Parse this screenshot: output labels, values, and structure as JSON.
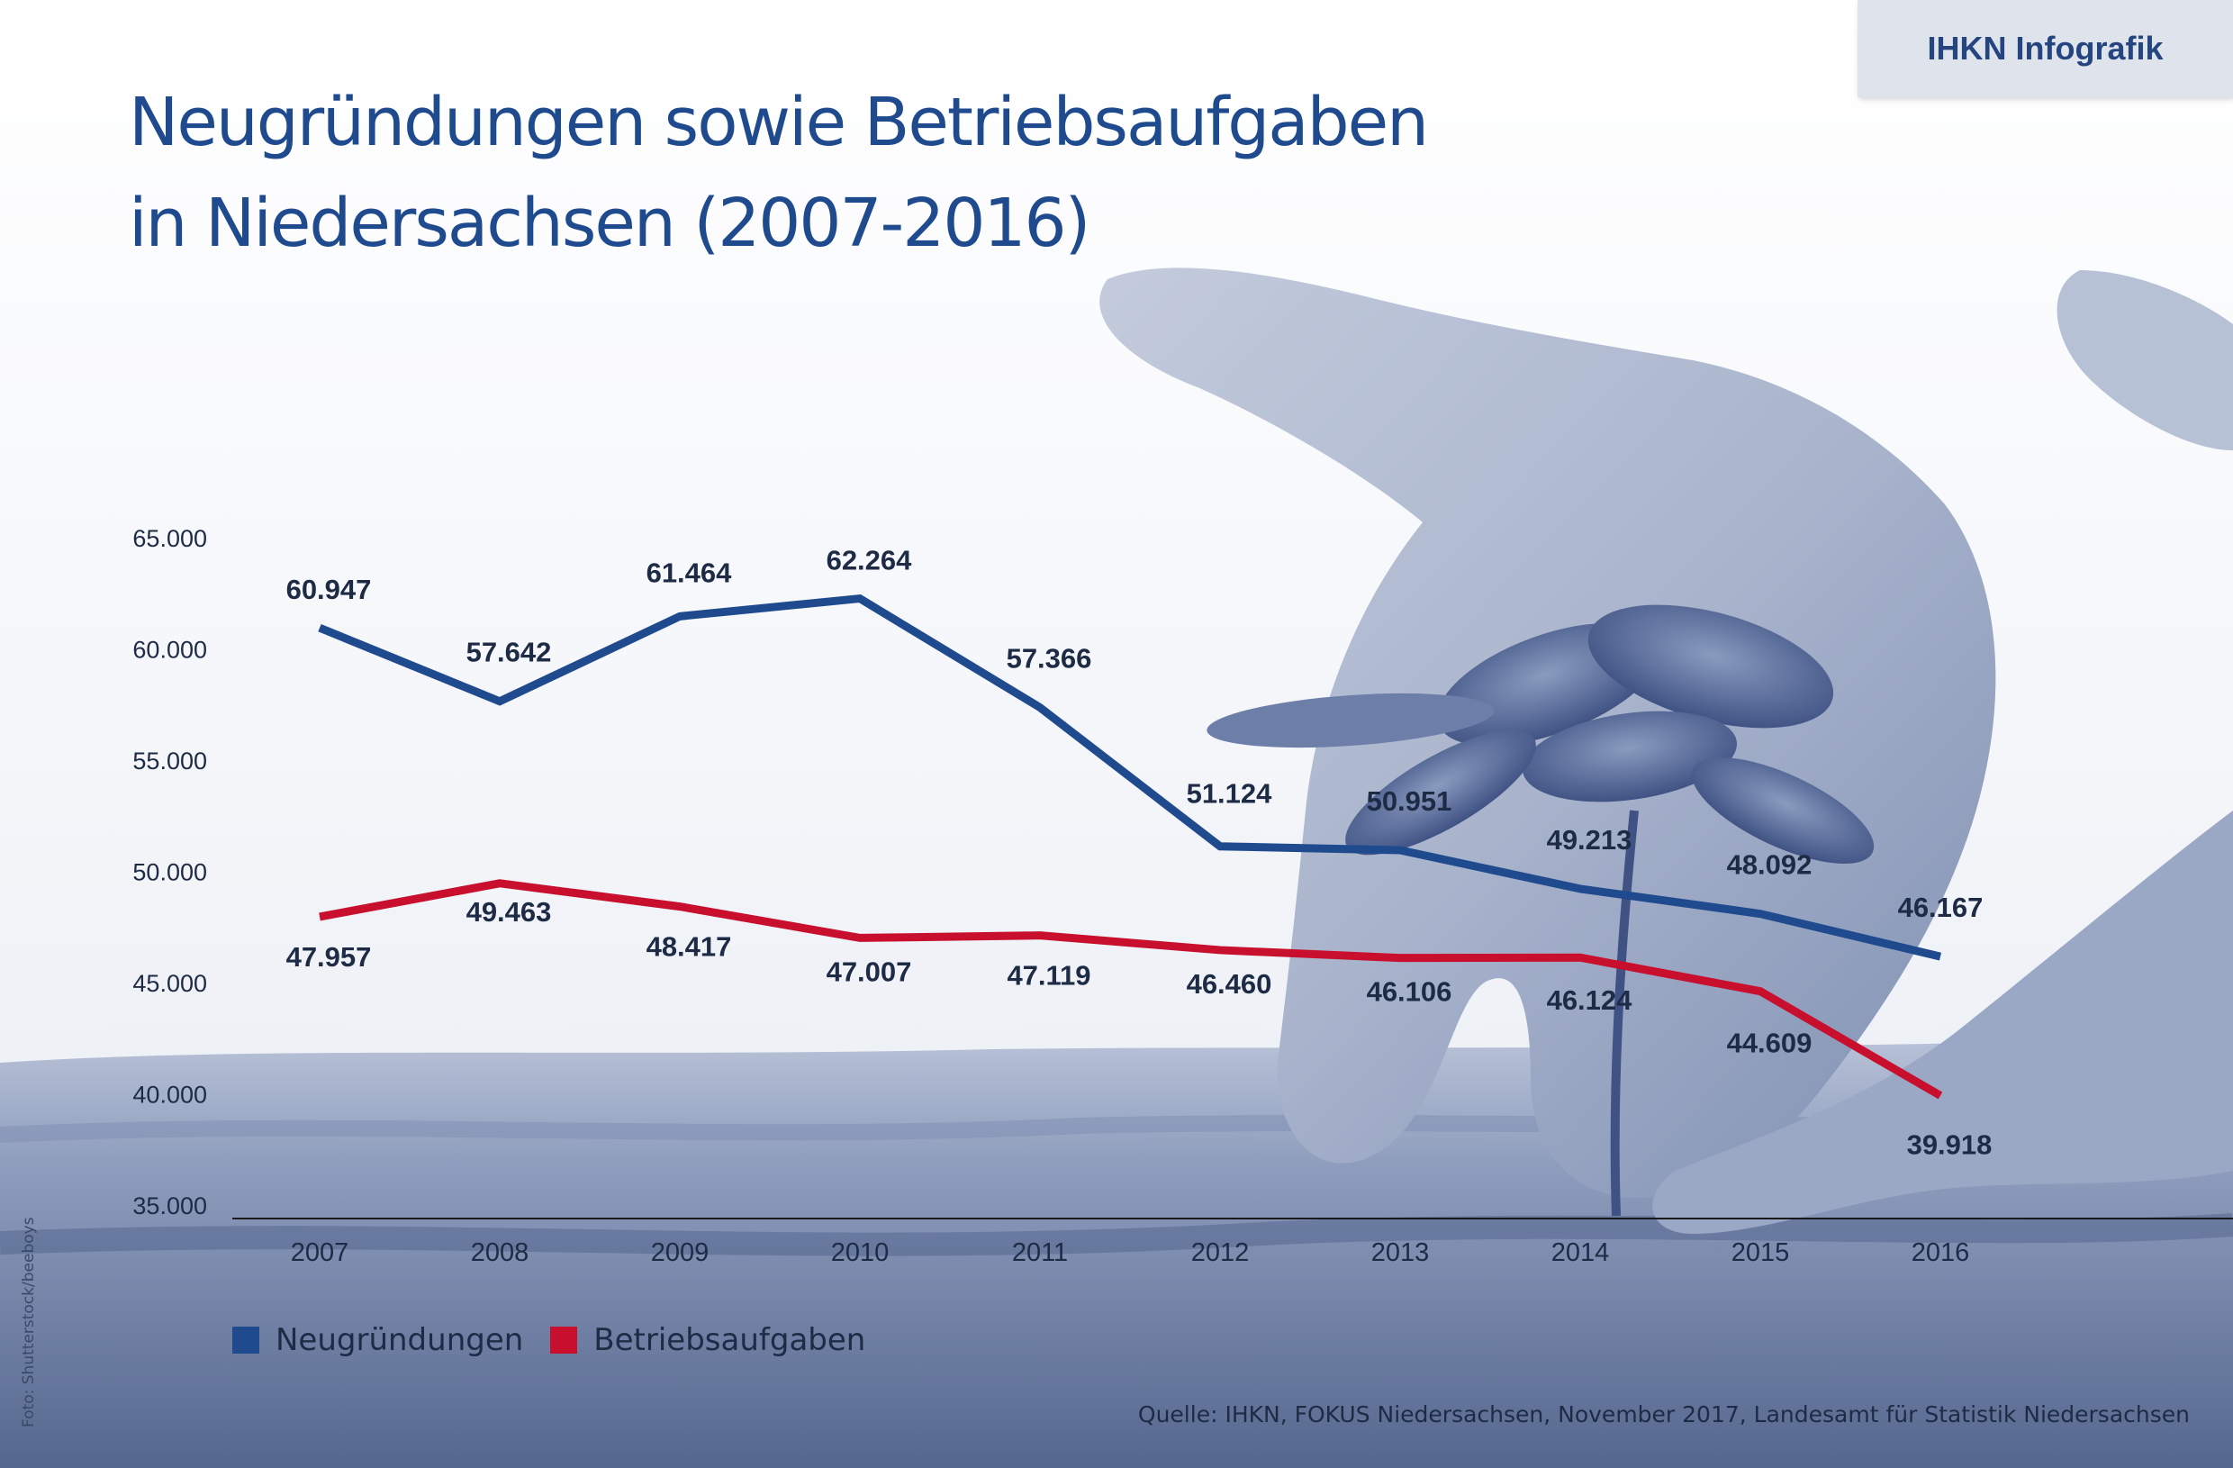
{
  "badge": "IHKN Infografik",
  "title_line1": "Neugründungen sowie Betriebsaufgaben",
  "title_line2": "in Niedersachsen (2007-2016)",
  "legend": [
    {
      "label": "Neugründungen",
      "color": "#1f4b8e"
    },
    {
      "label": "Betriebsaufgaben",
      "color": "#c8102e"
    }
  ],
  "source": "Quelle: IHKN, FOKUS Niedersachsen, November 2017, Landesamt für Statistik Niedersachsen",
  "photo_credit": "Foto: Shutterstock/beeboys",
  "chart_data": {
    "type": "line",
    "categories": [
      "2007",
      "2008",
      "2009",
      "2010",
      "2011",
      "2012",
      "2013",
      "2014",
      "2015",
      "2016"
    ],
    "y_ticks": [
      "35.000",
      "40.000",
      "45.000",
      "50.000",
      "55.000",
      "60.000",
      "65.000"
    ],
    "ylim": [
      35000,
      65000
    ],
    "grid": false,
    "legend_position": "bottom-left",
    "series": [
      {
        "name": "Neugründungen",
        "color": "#1f4b8e",
        "values": [
          60947,
          57642,
          61464,
          62264,
          57366,
          51124,
          50951,
          49213,
          48092,
          46167
        ],
        "labels": [
          "60.947",
          "57.642",
          "61.464",
          "62.264",
          "57.366",
          "51.124",
          "50.951",
          "49.213",
          "48.092",
          "46.167"
        ]
      },
      {
        "name": "Betriebsaufgaben",
        "color": "#c8102e",
        "values": [
          47957,
          49463,
          48417,
          47007,
          47119,
          46460,
          46106,
          46124,
          44609,
          39918
        ],
        "labels": [
          "47.957",
          "49.463",
          "48.417",
          "47.007",
          "47.119",
          "46.460",
          "46.106",
          "46.124",
          "44.609",
          "39.918"
        ]
      }
    ]
  }
}
